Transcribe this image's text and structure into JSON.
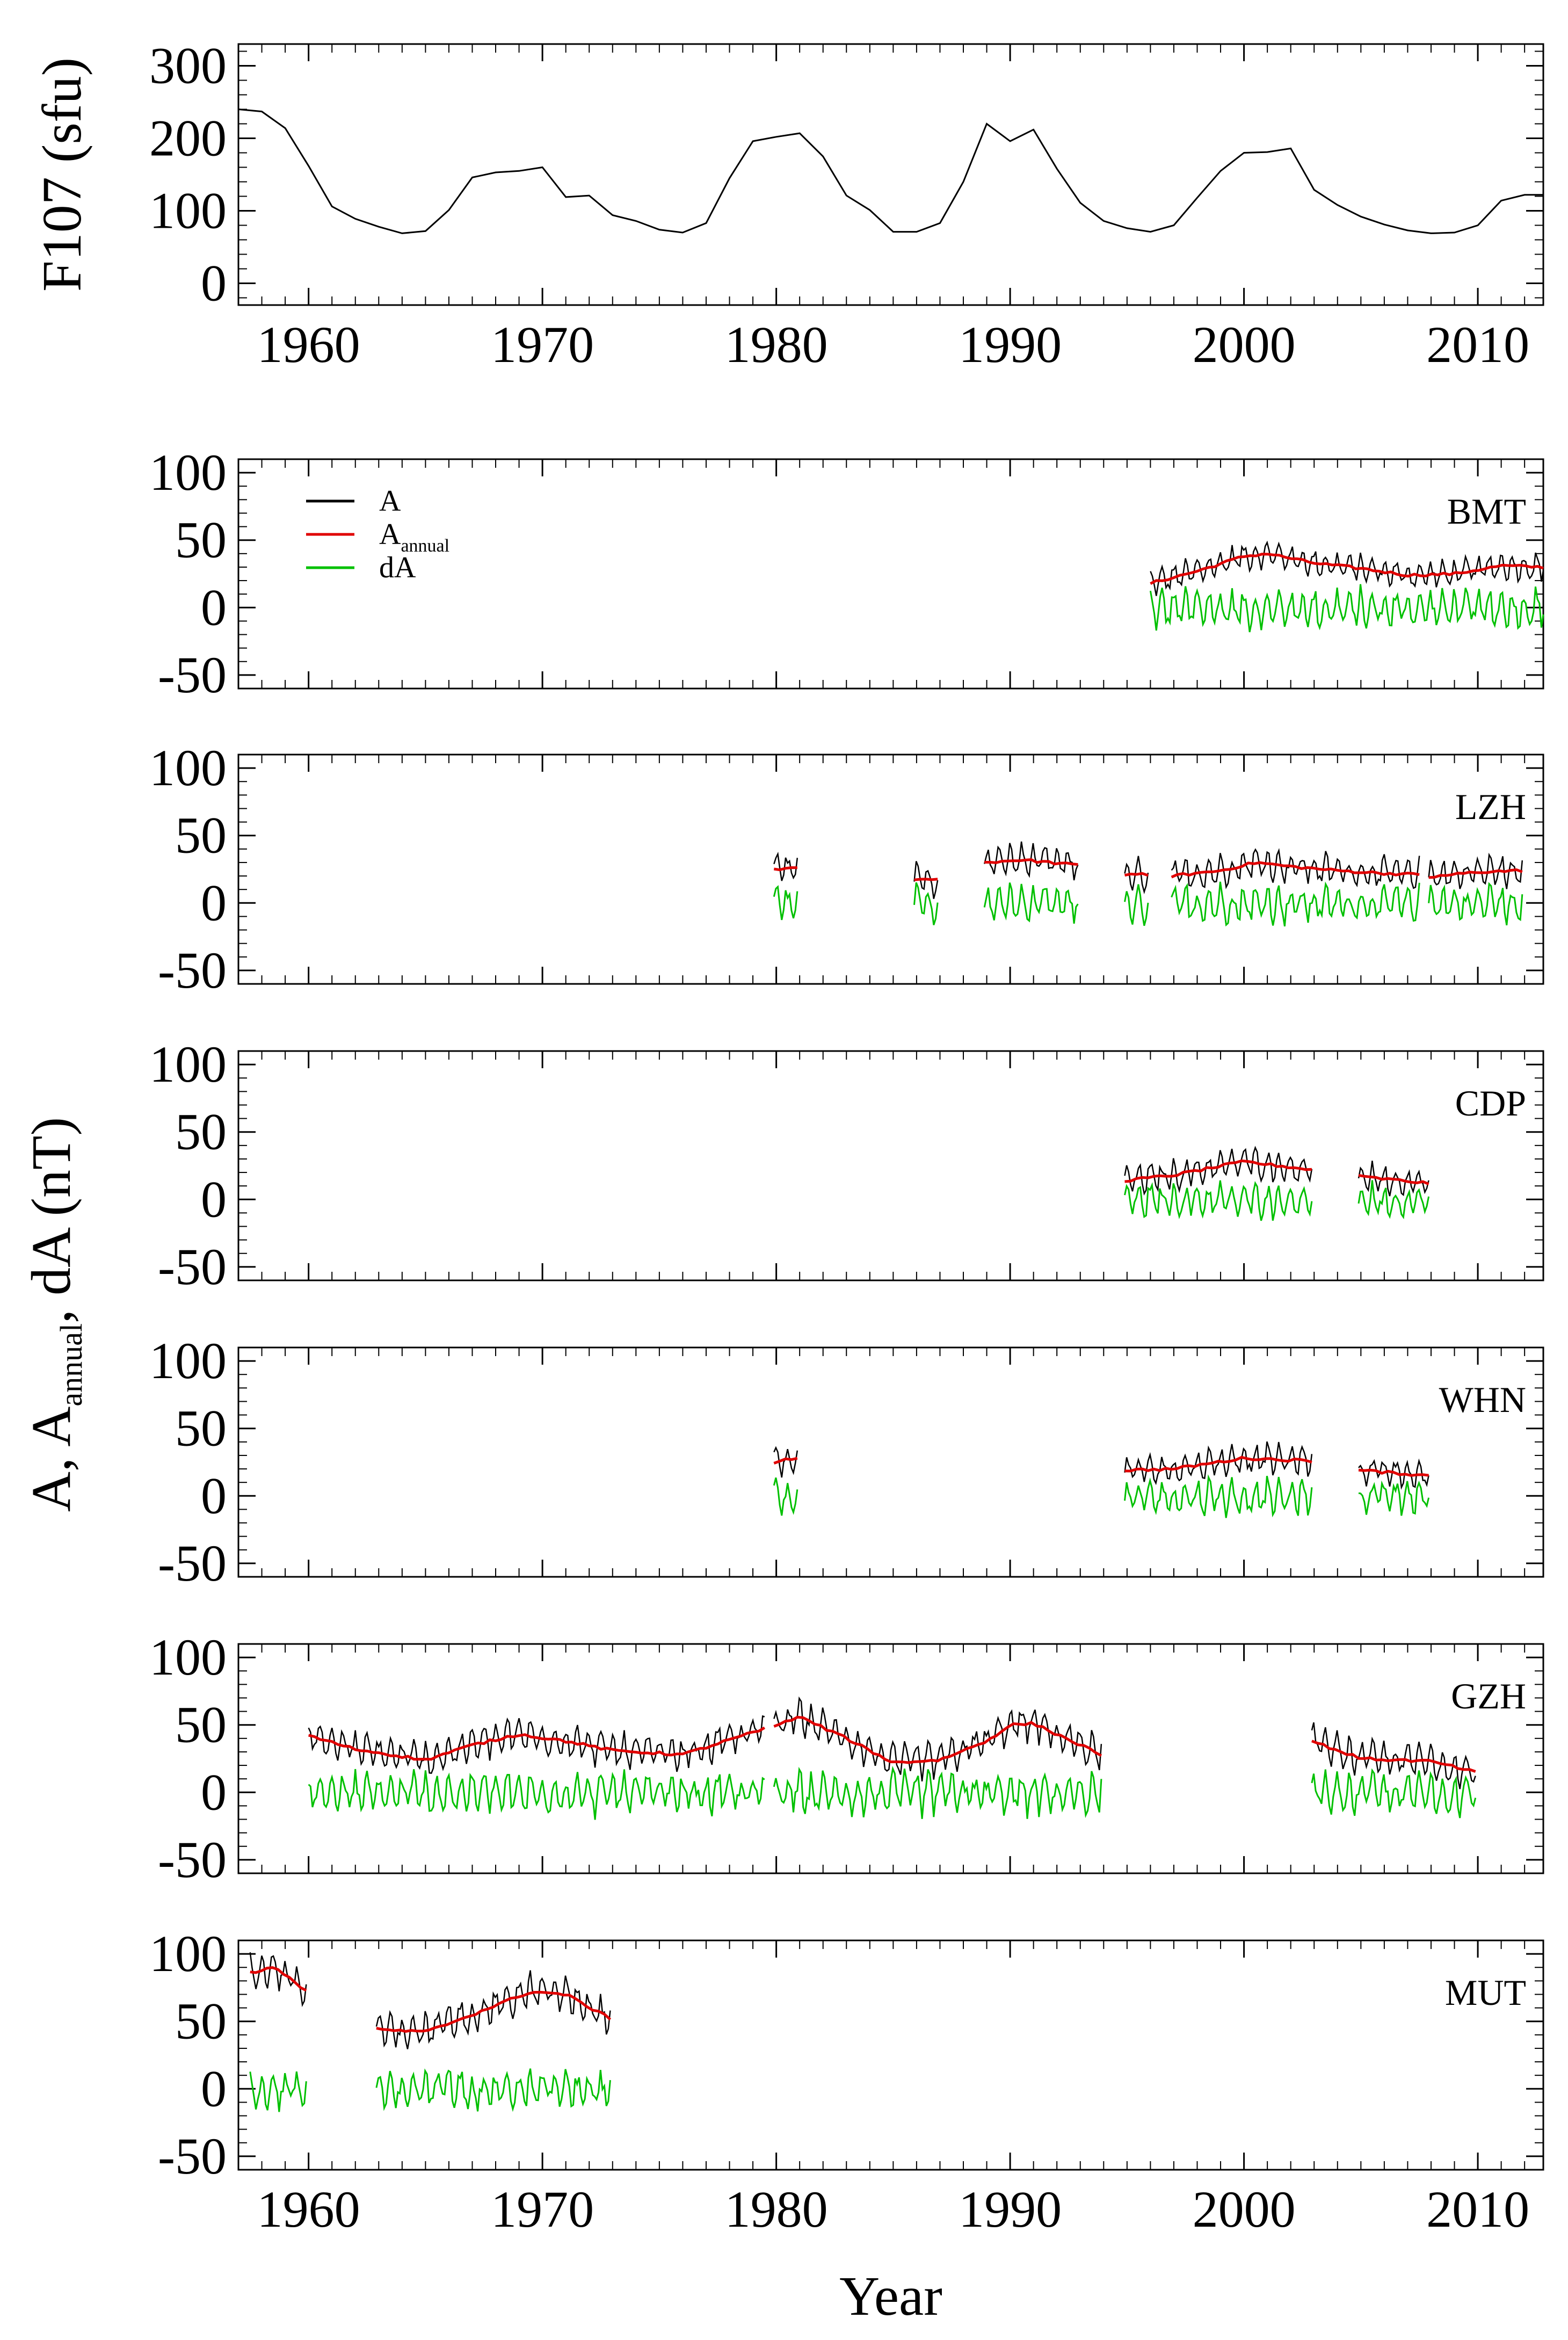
{
  "chart_data": [
    {
      "type": "line",
      "panel": "F107",
      "ylabel": "F107 (sfu)",
      "ylim": [
        -30,
        330
      ],
      "yticks": [
        "300",
        "200",
        "100",
        "0"
      ],
      "xlim": [
        1957,
        2012.8
      ],
      "xticks": [
        "1960",
        "1970",
        "1980",
        "1990",
        "2000",
        "2010"
      ],
      "series": [
        {
          "name": "F107",
          "x": [
            1957,
            1958,
            1959,
            1960,
            1961,
            1962,
            1963,
            1964,
            1965,
            1966,
            1967,
            1968,
            1969,
            1970,
            1971,
            1972,
            1973,
            1974,
            1975,
            1976,
            1977,
            1978,
            1979,
            1980,
            1981,
            1982,
            1983,
            1984,
            1985,
            1986,
            1987,
            1988,
            1989,
            1990,
            1991,
            1992,
            1993,
            1994,
            1995,
            1996,
            1997,
            1998,
            1999,
            2000,
            2001,
            2002,
            2003,
            2004,
            2005,
            2006,
            2007,
            2008,
            2009,
            2010,
            2011,
            2012,
            2012.8
          ],
          "values": [
            240,
            237,
            214,
            162,
            106,
            89,
            78,
            69,
            72,
            101,
            146,
            153,
            155,
            160,
            119,
            121,
            94,
            86,
            74,
            70,
            83,
            145,
            196,
            202,
            207,
            175,
            121,
            101,
            71,
            71,
            83,
            140,
            220,
            196,
            212,
            158,
            111,
            86,
            76,
            71,
            80,
            118,
            155,
            180,
            181,
            186,
            129,
            108,
            92,
            81,
            73,
            69,
            70,
            80,
            114,
            122,
            122
          ]
        }
      ]
    },
    {
      "type": "line",
      "panel": "BMT",
      "label": "BMT",
      "ylim": [
        -60,
        110
      ],
      "yticks": [
        "100",
        "50",
        "0",
        "-50"
      ],
      "series": [
        {
          "name": "A",
          "color": "#000000",
          "segments": [
            [
              1996.0,
              2012.8
            ]
          ],
          "baseline_start": 20,
          "baseline_points": [
            [
              1996,
              18
            ],
            [
              2000,
              40
            ],
            [
              2004,
              30
            ],
            [
              2008,
              27
            ],
            [
              2012.8,
              33
            ]
          ],
          "amplitude": 10
        },
        {
          "name": "A_annual",
          "color": "#e00000",
          "segments": [
            [
              1996.0,
              2012.8
            ]
          ],
          "points": [
            [
              1996,
              18
            ],
            [
              1998,
              27
            ],
            [
              2000,
              38
            ],
            [
              2001,
              40
            ],
            [
              2003,
              33
            ],
            [
              2005,
              29
            ],
            [
              2007,
              24
            ],
            [
              2009,
              25
            ],
            [
              2011,
              31
            ],
            [
              2012.8,
              30
            ]
          ]
        },
        {
          "name": "dA",
          "color": "#00c000",
          "segments": [
            [
              1996.0,
              2012.8
            ]
          ],
          "amplitude": 14
        }
      ]
    },
    {
      "type": "line",
      "panel": "LZH",
      "label": "LZH",
      "ylim": [
        -60,
        110
      ],
      "yticks": [
        "100",
        "50",
        "0",
        "-50"
      ],
      "series": [
        {
          "name": "A",
          "color": "#000000",
          "segments": [
            [
              1979.9,
              1980.9
            ],
            [
              1985.9,
              1986.9
            ],
            [
              1988.9,
              1992.9
            ],
            [
              1994.9,
              1995.9
            ],
            [
              1996.9,
              2007.5
            ],
            [
              2007.9,
              2011.9
            ]
          ],
          "amplitude": 12
        },
        {
          "name": "A_annual",
          "color": "#e00000",
          "points": [
            [
              1979.9,
              25
            ],
            [
              1980.9,
              27
            ],
            [
              1985.9,
              17
            ],
            [
              1986.9,
              17
            ],
            [
              1988.9,
              30
            ],
            [
              1990.5,
              32
            ],
            [
              1992.9,
              28
            ],
            [
              1994.9,
              21
            ],
            [
              1995.9,
              21
            ],
            [
              1996.9,
              20
            ],
            [
              1999,
              24
            ],
            [
              2000.5,
              30
            ],
            [
              2002,
              27
            ],
            [
              2004,
              24
            ],
            [
              2006,
              22
            ],
            [
              2007.5,
              21
            ],
            [
              2007.9,
              19
            ],
            [
              2010,
              23
            ],
            [
              2011.9,
              24
            ]
          ]
        },
        {
          "name": "dA",
          "color": "#00c000",
          "amplitude": 14
        }
      ]
    },
    {
      "type": "line",
      "panel": "CDP",
      "label": "CDP",
      "ylim": [
        -60,
        110
      ],
      "yticks": [
        "100",
        "50",
        "0",
        "-50"
      ],
      "series": [
        {
          "name": "A",
          "color": "#000000",
          "segments": [
            [
              1994.9,
              2002.9
            ],
            [
              2004.9,
              2007.9
            ]
          ],
          "amplitude": 11
        },
        {
          "name": "A_annual",
          "color": "#e00000",
          "points": [
            [
              1994.9,
              14
            ],
            [
              1997,
              18
            ],
            [
              2000,
              28
            ],
            [
              2002.9,
              22
            ],
            [
              2004.9,
              17
            ],
            [
              2007.9,
              12
            ]
          ]
        },
        {
          "name": "dA",
          "color": "#00c000",
          "amplitude": 12
        }
      ]
    },
    {
      "type": "line",
      "panel": "WHN",
      "label": "WHN",
      "ylim": [
        -60,
        110
      ],
      "yticks": [
        "100",
        "50",
        "0",
        "-50"
      ],
      "series": [
        {
          "name": "A",
          "color": "#000000",
          "segments": [
            [
              1979.9,
              1980.9
            ],
            [
              1994.9,
              2002.9
            ],
            [
              2004.9,
              2007.9
            ]
          ],
          "amplitude": 11
        },
        {
          "name": "A_annual",
          "color": "#e00000",
          "points": [
            [
              1979.9,
              25
            ],
            [
              1980.9,
              28
            ],
            [
              1994.9,
              19
            ],
            [
              1997,
              20
            ],
            [
              2000,
              28
            ],
            [
              2002.9,
              26
            ],
            [
              2004.9,
              19
            ],
            [
              2007.9,
              15
            ]
          ]
        },
        {
          "name": "dA",
          "color": "#00c000",
          "amplitude": 13
        }
      ]
    },
    {
      "type": "line",
      "panel": "GZH",
      "label": "GZH",
      "ylim": [
        -60,
        110
      ],
      "yticks": [
        "100",
        "50",
        "0",
        "-50"
      ],
      "series": [
        {
          "name": "A",
          "color": "#000000",
          "segments": [
            [
              1960.0,
              1979.5
            ],
            [
              1979.9,
              1993.9
            ],
            [
              2002.9,
              2009.9
            ]
          ],
          "amplitude": 13
        },
        {
          "name": "A_annual",
          "color": "#e00000",
          "points": [
            [
              1960,
              42
            ],
            [
              1962,
              32
            ],
            [
              1965,
              24
            ],
            [
              1967,
              35
            ],
            [
              1969,
              43
            ],
            [
              1971,
              38
            ],
            [
              1973,
              31
            ],
            [
              1976,
              28
            ],
            [
              1979.5,
              47
            ],
            [
              1979.9,
              49
            ],
            [
              1981,
              56
            ],
            [
              1983,
              40
            ],
            [
              1985,
              22
            ],
            [
              1987,
              24
            ],
            [
              1989,
              38
            ],
            [
              1990,
              50
            ],
            [
              1991,
              51
            ],
            [
              1993.9,
              28
            ],
            [
              2002.9,
              38
            ],
            [
              2005,
              25
            ],
            [
              2008,
              23
            ],
            [
              2009.9,
              15
            ]
          ]
        },
        {
          "name": "dA",
          "color": "#00c000",
          "amplitude": 15
        }
      ]
    },
    {
      "type": "line",
      "panel": "MUT",
      "label": "MUT",
      "ylim": [
        -60,
        110
      ],
      "yticks": [
        "100",
        "50",
        "0",
        "-50"
      ],
      "series": [
        {
          "name": "A",
          "color": "#000000",
          "segments": [
            [
              1957.5,
              1959.9
            ],
            [
              1962.9,
              1972.9
            ]
          ],
          "amplitude": 14
        },
        {
          "name": "A_annual",
          "color": "#e00000",
          "points": [
            [
              1957.5,
              86
            ],
            [
              1958.5,
              90
            ],
            [
              1959.9,
              73
            ],
            [
              1962.9,
              44
            ],
            [
              1965,
              42
            ],
            [
              1967,
              55
            ],
            [
              1969.5,
              72
            ],
            [
              1971,
              70
            ],
            [
              1972.9,
              52
            ]
          ]
        },
        {
          "name": "dA",
          "color": "#00c000",
          "amplitude": 14
        }
      ]
    }
  ],
  "legend": {
    "items": [
      {
        "label": "A",
        "sub": "",
        "color": "#000000"
      },
      {
        "label": "A",
        "sub": "annual",
        "color": "#e00000"
      },
      {
        "label": "dA",
        "sub": "",
        "color": "#00c000"
      }
    ]
  },
  "axis_titles": {
    "y_main": "A,  A",
    "y_main_sub": "annual",
    "y_main_tail": ",  dA (nT)",
    "x_main": "Year"
  }
}
